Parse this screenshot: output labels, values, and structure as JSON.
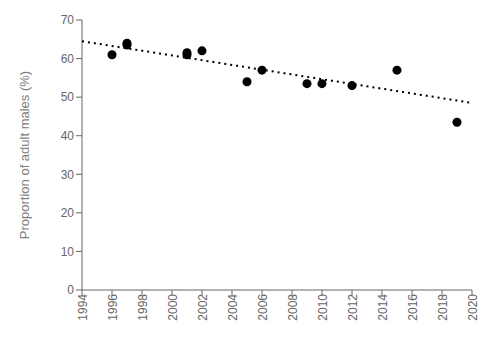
{
  "chart_data": {
    "type": "scatter",
    "ylabel": "Proportion of adult males (%)",
    "series": [
      {
        "type": "scatter",
        "color": "black",
        "marker": "circle",
        "x": [
          1996,
          1997,
          1997,
          2001,
          2001,
          2002,
          2005,
          2006,
          2009,
          2010,
          2012,
          2015,
          2019
        ],
        "values": [
          61.0,
          64.0,
          63.5,
          61.0,
          61.5,
          62.0,
          54.0,
          57.0,
          53.5,
          53.5,
          53.0,
          57.0,
          43.5
        ]
      },
      {
        "type": "line",
        "color": "black",
        "line_style": "dotted",
        "x": [
          1994,
          2020
        ],
        "values": [
          64.5,
          48.5
        ]
      }
    ],
    "xlim": [
      1994,
      2020
    ],
    "ylim": [
      0,
      70
    ],
    "xticks": [
      1994,
      1996,
      1998,
      2000,
      2002,
      2004,
      2006,
      2008,
      2010,
      2012,
      2014,
      2016,
      2018,
      2020
    ],
    "yticks": [
      0,
      10,
      20,
      30,
      40,
      50,
      60,
      70
    ],
    "grid": false
  }
}
